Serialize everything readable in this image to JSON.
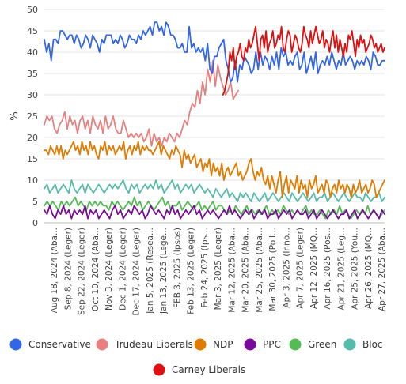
{
  "chart_data": {
    "type": "line",
    "ylabel": "%",
    "ylim": [
      0,
      50
    ],
    "yticks": [
      0,
      5,
      10,
      15,
      20,
      25,
      30,
      35,
      40,
      45,
      50
    ],
    "grid": "horizontal",
    "legend_position": "bottom",
    "x_tick_labels": [
      "Aug 18, 2024 (Aba...",
      "Sep 8, 2024 (Leger)",
      "Sep 22, 2024 (Leger)",
      "Oct 10, 2024 (Aba...",
      "Nov 3, 2024 (Leger)",
      "Dec 1, 2024 (Leger)",
      "Dec 17, 2024 (Leger)",
      "Jan 5, 2025 (Resea...",
      "Jan 13, 2025 (Lege...",
      "FEB 3, 2025 (Ipsos)",
      "Feb 13, 2025 (Leger)",
      "Feb 24, 2025 (Ips...",
      "Mar 3, 2025 (Leger)",
      "Mar 12, 2025 (Aba...",
      "Mar 20, 2025 (Aba...",
      "Mar 25, 2025 (Aba...",
      "Mar 30, 2025 (Poll...",
      "Apr 3, 2025 (Inno...",
      "Apr 7, 2025 (Leger)",
      "Apr 12, 2025 (MQ...",
      "Apr 16, 2025 (Pos...",
      "Apr 21, 2025 (Leg...",
      "Apr 25, 2025 (You...",
      "Apr 26, 2025 (MQ...",
      "Apr 27, 2025 (Aba..."
    ],
    "series": [
      {
        "name": "Conservative",
        "color": "#3366e6",
        "values": [
          43,
          40,
          42,
          38,
          43,
          43,
          42,
          45,
          45,
          44,
          43,
          44,
          44,
          42,
          44,
          43,
          41,
          42,
          44,
          43,
          41,
          44,
          43,
          42,
          40,
          43,
          42,
          44,
          44,
          44,
          42,
          43,
          42,
          44,
          43,
          41,
          42,
          44,
          43,
          43,
          42,
          44,
          43,
          45,
          44,
          45,
          46,
          44,
          47,
          47,
          45,
          46,
          44,
          47,
          46,
          44,
          44,
          43,
          41,
          41,
          42,
          40,
          40,
          46,
          41,
          42,
          40,
          41,
          40,
          41,
          38,
          42,
          36,
          35,
          39,
          39,
          41,
          42,
          43,
          38,
          36,
          33,
          34,
          38,
          33,
          37,
          36,
          39,
          38,
          37,
          35,
          36,
          40,
          36,
          40,
          37,
          39,
          38,
          36,
          39,
          37,
          40,
          36,
          41,
          39,
          40,
          37,
          38,
          37,
          39,
          40,
          36,
          37,
          40,
          35,
          37,
          39,
          36,
          40,
          35,
          37,
          38,
          37,
          39,
          37,
          40,
          38,
          36,
          38,
          37,
          40,
          37,
          38,
          39,
          38,
          36,
          38,
          37,
          38,
          37,
          39,
          38,
          36,
          40,
          39,
          37,
          37,
          38,
          38
        ]
      },
      {
        "name": "Trudeau Liberals",
        "color": "#e88080",
        "values": [
          23,
          25,
          24,
          25,
          22,
          21,
          23,
          24,
          26,
          22,
          25,
          23,
          24,
          21,
          24,
          25,
          22,
          24,
          21,
          25,
          23,
          22,
          24,
          21,
          25,
          22,
          23,
          25,
          22,
          21,
          21,
          24,
          22,
          20,
          21,
          20,
          21,
          20,
          21,
          19,
          20,
          22,
          18,
          21,
          19,
          20,
          18,
          20,
          19,
          21,
          20,
          19,
          21,
          20,
          22,
          24,
          23,
          26,
          28,
          27,
          31,
          28,
          33,
          30,
          36,
          33,
          38,
          32,
          37,
          34,
          32,
          30,
          31,
          33,
          29,
          30,
          31
        ]
      },
      {
        "name": "Carney Liberals",
        "color": "#dd1111",
        "values": [
          30,
          31,
          33,
          35,
          40,
          38,
          41,
          36,
          39,
          40,
          42,
          39,
          38,
          41,
          40,
          43,
          41,
          42,
          44,
          46,
          42,
          38,
          43,
          44,
          41,
          45,
          40,
          42,
          43,
          45,
          41,
          42,
          44,
          43,
          46,
          41,
          40,
          43,
          45,
          44,
          40,
          42,
          44,
          43,
          41,
          40,
          42,
          46,
          44,
          43,
          41,
          45,
          42,
          44,
          46,
          44,
          42,
          43,
          45,
          41,
          43,
          42,
          40,
          43,
          45,
          41,
          44,
          40,
          43,
          41,
          39,
          42,
          40,
          44,
          43,
          45,
          42,
          39,
          43,
          41,
          44,
          42,
          43,
          40,
          41,
          42,
          44,
          43,
          41,
          42,
          40,
          41,
          42,
          40,
          41
        ]
      },
      {
        "name": "NDP",
        "color": "#e07b00",
        "values": [
          17,
          17,
          16,
          18,
          17,
          16,
          18,
          16,
          18,
          15,
          17,
          16,
          17,
          18,
          19,
          17,
          18,
          16,
          19,
          17,
          18,
          16,
          19,
          17,
          18,
          16,
          15,
          18,
          17,
          19,
          16,
          18,
          17,
          18,
          16,
          17,
          18,
          17,
          19,
          15,
          17,
          18,
          16,
          18,
          17,
          19,
          16,
          18,
          17,
          18,
          17,
          17,
          16,
          17,
          18,
          19,
          16,
          18,
          17,
          16,
          15,
          17,
          16,
          18,
          17,
          16,
          13,
          17,
          15,
          16,
          14,
          15,
          16,
          13,
          14,
          15,
          12,
          14,
          13,
          15,
          11,
          14,
          12,
          13,
          11,
          14,
          10,
          12,
          13,
          11,
          12,
          13,
          14,
          11,
          12,
          10,
          11,
          12,
          14,
          15,
          12,
          10,
          12,
          11,
          13,
          10,
          9,
          11,
          8,
          11,
          9,
          7,
          10,
          12,
          6,
          9,
          11,
          7,
          10,
          9,
          8,
          11,
          7,
          10,
          8,
          9,
          6,
          10,
          8,
          9,
          11,
          7,
          8,
          9,
          7,
          10,
          9,
          6,
          8,
          9,
          7,
          10,
          8,
          9,
          7,
          9,
          8,
          6,
          9,
          7,
          8,
          10,
          7,
          8,
          9,
          7,
          8,
          10,
          9,
          6,
          7,
          8,
          9,
          10
        ]
      },
      {
        "name": "PPC",
        "color": "#7a0a9a",
        "values": [
          3,
          2,
          4,
          2,
          1,
          3,
          2,
          4,
          2,
          3,
          1,
          3,
          2,
          3,
          2,
          4,
          1,
          3,
          2,
          3,
          1,
          2,
          3,
          2,
          1,
          3,
          4,
          2,
          3,
          1,
          2,
          3,
          2,
          4,
          3,
          2,
          3,
          1,
          2,
          4,
          3,
          2,
          3,
          2,
          1,
          3,
          2,
          4,
          2,
          3,
          1,
          2,
          3,
          2,
          3,
          4,
          2,
          3,
          1,
          2,
          3,
          2,
          3,
          2,
          1,
          2,
          3,
          2,
          4,
          2,
          3,
          2,
          1,
          2,
          3,
          2,
          3,
          1,
          2,
          3,
          2,
          3,
          1,
          2,
          2,
          3,
          1,
          2,
          3,
          2,
          3,
          1,
          2,
          3,
          2,
          2,
          3,
          1,
          2,
          3,
          1,
          2,
          3,
          2,
          1,
          2,
          3,
          2,
          1,
          2,
          2,
          3,
          1,
          2,
          3,
          1,
          2,
          3,
          2,
          1,
          2,
          3,
          2,
          1,
          3,
          2
        ]
      },
      {
        "name": "Green",
        "color": "#55bb55",
        "values": [
          4,
          5,
          4,
          5,
          4,
          3,
          5,
          4,
          5,
          4,
          5,
          6,
          4,
          5,
          4,
          3,
          5,
          4,
          5,
          4,
          5,
          4,
          4,
          3,
          5,
          4,
          5,
          4,
          3,
          4,
          5,
          4,
          6,
          4,
          5,
          3,
          4,
          5,
          4,
          3,
          4,
          5,
          6,
          4,
          5,
          3,
          4,
          4,
          5,
          3,
          4,
          5,
          4,
          3,
          4,
          5,
          3,
          4,
          3,
          4,
          5,
          3,
          4,
          4,
          3,
          2,
          3,
          2,
          4,
          3,
          2,
          3,
          4,
          2,
          3,
          2,
          3,
          2,
          3,
          4,
          2,
          3,
          2,
          3,
          2,
          4,
          3,
          2,
          3,
          2,
          3,
          2,
          3,
          4,
          2,
          3,
          2,
          2,
          3,
          2,
          1,
          3,
          2,
          3,
          2,
          4,
          2,
          3,
          2,
          1,
          2,
          3,
          2,
          3,
          2,
          4,
          2,
          3,
          2,
          1,
          2,
          3
        ]
      },
      {
        "name": "Bloc",
        "color": "#55bbaa",
        "values": [
          8,
          9,
          7,
          8,
          9,
          7,
          8,
          9,
          8,
          7,
          10,
          8,
          7,
          8,
          9,
          7,
          9,
          8,
          7,
          8,
          9,
          8,
          7,
          8,
          9,
          8,
          9,
          8,
          9,
          10,
          8,
          7,
          9,
          8,
          9,
          7,
          8,
          9,
          8,
          9,
          8,
          10,
          8,
          9,
          7,
          8,
          9,
          10,
          8,
          9,
          7,
          8,
          9,
          8,
          9,
          7,
          8,
          9,
          8,
          7,
          8,
          7,
          6,
          8,
          7,
          6,
          7,
          8,
          6,
          7,
          6,
          5,
          7,
          6,
          7,
          6,
          5,
          7,
          6,
          5,
          6,
          7,
          5,
          6,
          7,
          6,
          5,
          6,
          7,
          6,
          5,
          7,
          6,
          5,
          6,
          7,
          6,
          5,
          6,
          7,
          5,
          6,
          6,
          7,
          5,
          6,
          7,
          6,
          5,
          6,
          7,
          6,
          5,
          6,
          7,
          6,
          6,
          5,
          7,
          6,
          5,
          6,
          6,
          7,
          5,
          6
        ]
      }
    ],
    "legend": [
      "Conservative",
      "Trudeau Liberals",
      "NDP",
      "PPC",
      "Green",
      "Bloc",
      "Carney Liberals"
    ]
  }
}
